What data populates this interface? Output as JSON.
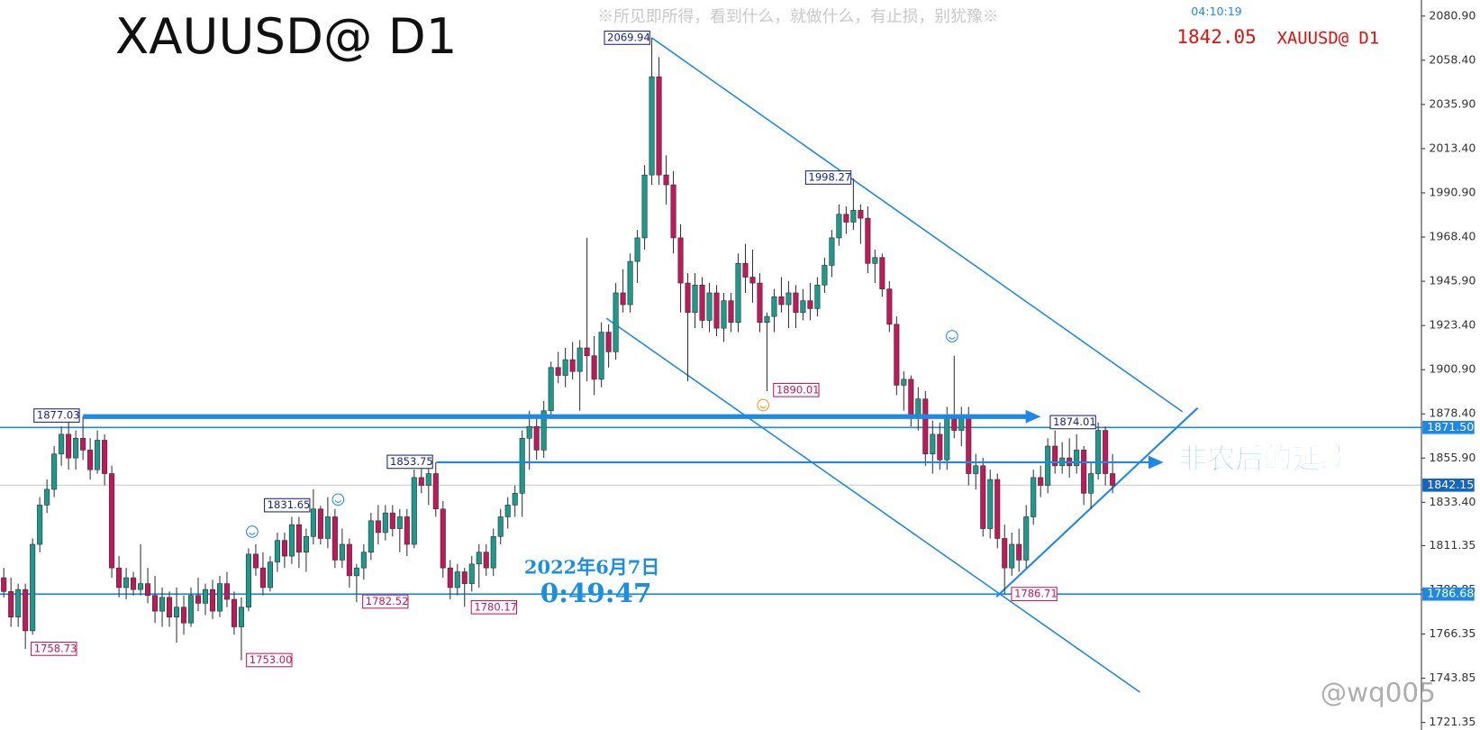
{
  "chart_data": {
    "type": "candlestick",
    "title": "XAUUSD@ D1",
    "subtitle": "※所见即所得，看到什么，就做什么，有止损，别犹豫※",
    "clock": "04:10:19",
    "current_price": 1842.05,
    "annotations": {
      "note": "非农后的延续",
      "date": "2022年6月7日",
      "time": "0:49:47"
    },
    "watermark": "@wq005",
    "colors": {
      "up": "#1a9b8c",
      "down": "#c2185b",
      "line": "#1e88e5"
    },
    "ylim": [
      1717.5,
      2089.07
    ],
    "yticks": [
      {
        "value": 2080.9,
        "label": "2080.90"
      },
      {
        "value": 2058.4,
        "label": "2058.40"
      },
      {
        "value": 2035.9,
        "label": "2035.90"
      },
      {
        "value": 2013.4,
        "label": "2013.40"
      },
      {
        "value": 1990.9,
        "label": "1990.90"
      },
      {
        "value": 1968.4,
        "label": "1968.40"
      },
      {
        "value": 1945.9,
        "label": "1945.90"
      },
      {
        "value": 1923.4,
        "label": "1923.40"
      },
      {
        "value": 1900.9,
        "label": "1900.90"
      },
      {
        "value": 1878.4,
        "label": "1878.40"
      },
      {
        "value": 1855.9,
        "label": "1855.90"
      },
      {
        "value": 1833.4,
        "label": "1833.40"
      },
      1811.35,
      1788.85,
      1766.35,
      1743.85,
      1721.35
    ],
    "levels": [
      {
        "value": 1871.5,
        "label": "1871.50"
      },
      1842.15,
      1786.68
    ],
    "price_labels": [
      2069.94,
      1998.27,
      1890.01,
      1877.03,
      1874.01,
      1853.75,
      1831.65,
      1782.52,
      1780.17,
      1786.71,
      1758.73,
      {
        "value": 1753,
        "label": "1753.00"
      }
    ],
    "ohlc": [
      [
        1795,
        1800,
        1785,
        1788
      ],
      [
        1788,
        1795,
        1770,
        1775
      ],
      [
        1775,
        1792,
        1770,
        1789
      ],
      [
        1789,
        1792,
        1758.73,
        1768
      ],
      [
        1768,
        1815,
        1766,
        1812
      ],
      [
        1812,
        1836,
        1808,
        1832
      ],
      [
        1832,
        1845,
        1828,
        1840
      ],
      [
        1840,
        1862,
        1836,
        1858
      ],
      [
        1858,
        1872,
        1852,
        1868
      ],
      [
        1868,
        1875,
        1850,
        1856
      ],
      [
        1856,
        1870,
        1850,
        1866
      ],
      [
        1866,
        1877.03,
        1855,
        1860
      ],
      [
        1860,
        1866,
        1845,
        1850
      ],
      [
        1850,
        1870,
        1848,
        1865
      ],
      [
        1865,
        1868,
        1842,
        1848
      ],
      [
        1848,
        1852,
        1795,
        1800
      ],
      [
        1800,
        1806,
        1785,
        1790
      ],
      [
        1790,
        1800,
        1784,
        1795
      ],
      [
        1795,
        1798,
        1786,
        1789
      ],
      [
        1789,
        1812,
        1786,
        1792
      ],
      [
        1792,
        1800,
        1782,
        1786
      ],
      [
        1786,
        1796,
        1772,
        1778
      ],
      [
        1778,
        1790,
        1770,
        1785
      ],
      [
        1785,
        1788,
        1770,
        1775
      ],
      [
        1775,
        1790,
        1762,
        1780
      ],
      [
        1780,
        1786,
        1766,
        1772
      ],
      [
        1772,
        1790,
        1770,
        1786
      ],
      [
        1786,
        1795,
        1778,
        1782
      ],
      [
        1782,
        1792,
        1776,
        1789
      ],
      [
        1789,
        1794,
        1774,
        1778
      ],
      [
        1778,
        1796,
        1775,
        1792
      ],
      [
        1792,
        1798,
        1780,
        1784
      ],
      [
        1784,
        1788,
        1766,
        1770
      ],
      [
        1770,
        1785,
        1753,
        1780
      ],
      [
        1780,
        1810,
        1778,
        1807
      ],
      [
        1807,
        1812,
        1796,
        1800
      ],
      [
        1800,
        1808,
        1786,
        1790
      ],
      [
        1790,
        1806,
        1788,
        1803
      ],
      [
        1803,
        1818,
        1798,
        1814
      ],
      [
        1814,
        1818,
        1800,
        1806
      ],
      [
        1806,
        1826,
        1802,
        1822
      ],
      [
        1822,
        1826,
        1800,
        1808
      ],
      [
        1808,
        1820,
        1798,
        1816
      ],
      [
        1816,
        1840,
        1812,
        1830
      ],
      [
        1830,
        1831.65,
        1812,
        1815
      ],
      [
        1815,
        1836,
        1810,
        1826
      ],
      [
        1826,
        1830,
        1800,
        1804
      ],
      [
        1804,
        1820,
        1800,
        1812
      ],
      [
        1812,
        1815,
        1790,
        1796
      ],
      [
        1796,
        1802,
        1782.52,
        1800
      ],
      [
        1800,
        1812,
        1794,
        1808
      ],
      [
        1808,
        1828,
        1804,
        1824
      ],
      [
        1824,
        1832,
        1812,
        1818
      ],
      [
        1818,
        1832,
        1814,
        1828
      ],
      [
        1828,
        1832,
        1816,
        1820
      ],
      [
        1820,
        1830,
        1808,
        1826
      ],
      [
        1826,
        1830,
        1806,
        1812
      ],
      [
        1812,
        1850,
        1810,
        1846
      ],
      [
        1846,
        1852,
        1838,
        1842
      ],
      [
        1842,
        1852,
        1832,
        1848
      ],
      [
        1848,
        1853.75,
        1826,
        1830
      ],
      [
        1830,
        1834,
        1795,
        1800
      ],
      [
        1800,
        1804,
        1784,
        1790
      ],
      [
        1790,
        1802,
        1786,
        1798
      ],
      [
        1798,
        1800,
        1780.17,
        1792
      ],
      [
        1792,
        1806,
        1788,
        1802
      ],
      [
        1802,
        1812,
        1790,
        1808
      ],
      [
        1808,
        1812,
        1796,
        1800
      ],
      [
        1800,
        1820,
        1796,
        1816
      ],
      [
        1816,
        1830,
        1812,
        1826
      ],
      [
        1826,
        1836,
        1820,
        1832
      ],
      [
        1832,
        1842,
        1826,
        1838
      ],
      [
        1838,
        1870,
        1826,
        1866
      ],
      [
        1866,
        1880,
        1850,
        1872
      ],
      [
        1872,
        1878,
        1855,
        1860
      ],
      [
        1860,
        1885,
        1856,
        1880
      ],
      [
        1880,
        1905,
        1876,
        1902
      ],
      [
        1902,
        1910,
        1894,
        1898
      ],
      [
        1898,
        1912,
        1892,
        1906
      ],
      [
        1906,
        1915,
        1896,
        1900
      ],
      [
        1900,
        1916,
        1880,
        1912
      ],
      [
        1912,
        1968,
        1895,
        1908
      ],
      [
        1908,
        1918,
        1888,
        1896
      ],
      [
        1896,
        1925,
        1892,
        1920
      ],
      [
        1920,
        1924,
        1902,
        1910
      ],
      [
        1910,
        1945,
        1906,
        1940
      ],
      [
        1940,
        1952,
        1930,
        1934
      ],
      [
        1934,
        1960,
        1930,
        1956
      ],
      [
        1956,
        1972,
        1945,
        1968
      ],
      [
        1968,
        2005,
        1962,
        2000
      ],
      [
        2000,
        2069.94,
        1995,
        2050
      ],
      [
        2050,
        2060,
        1995,
        2000
      ],
      [
        2000,
        2010,
        1985,
        1995
      ],
      [
        1995,
        2002,
        1960,
        1968
      ],
      [
        1968,
        1975,
        1930,
        1945
      ],
      [
        1945,
        1950,
        1895,
        1930
      ],
      [
        1930,
        1950,
        1922,
        1944
      ],
      [
        1944,
        1948,
        1922,
        1926
      ],
      [
        1926,
        1945,
        1920,
        1940
      ],
      [
        1940,
        1944,
        1918,
        1922
      ],
      [
        1922,
        1940,
        1915,
        1936
      ],
      [
        1936,
        1940,
        1920,
        1925
      ],
      [
        1925,
        1960,
        1920,
        1955
      ],
      [
        1955,
        1965,
        1940,
        1948
      ],
      [
        1948,
        1962,
        1935,
        1945
      ],
      [
        1945,
        1950,
        1920,
        1925
      ],
      [
        1925,
        1930,
        1890.01,
        1928
      ],
      [
        1928,
        1942,
        1920,
        1938
      ],
      [
        1938,
        1948,
        1930,
        1934
      ],
      [
        1934,
        1946,
        1922,
        1940
      ],
      [
        1940,
        1944,
        1922,
        1930
      ],
      [
        1930,
        1942,
        1926,
        1936
      ],
      [
        1936,
        1945,
        1926,
        1932
      ],
      [
        1932,
        1948,
        1928,
        1944
      ],
      [
        1944,
        1958,
        1940,
        1954
      ],
      [
        1954,
        1972,
        1948,
        1968
      ],
      [
        1968,
        1985,
        1964,
        1980
      ],
      [
        1980,
        1984,
        1970,
        1976
      ],
      [
        1976,
        1998.27,
        1972,
        1982
      ],
      [
        1982,
        1985,
        1965,
        1978
      ],
      [
        1978,
        1984,
        1950,
        1955
      ],
      [
        1955,
        1962,
        1945,
        1958
      ],
      [
        1958,
        1960,
        1938,
        1942
      ],
      [
        1942,
        1946,
        1920,
        1924
      ],
      [
        1924,
        1928,
        1888,
        1893
      ],
      [
        1893,
        1900,
        1880,
        1896
      ],
      [
        1896,
        1898,
        1872,
        1878
      ],
      [
        1878,
        1892,
        1870,
        1886
      ],
      [
        1886,
        1890,
        1852,
        1858
      ],
      [
        1858,
        1875,
        1848,
        1868
      ],
      [
        1868,
        1874,
        1850,
        1855
      ],
      [
        1855,
        1882,
        1850,
        1876
      ],
      [
        1876,
        1908,
        1866,
        1870
      ],
      [
        1870,
        1882,
        1862,
        1878
      ],
      [
        1878,
        1882,
        1842,
        1848
      ],
      [
        1848,
        1858,
        1840,
        1852
      ],
      [
        1852,
        1856,
        1816,
        1820
      ],
      [
        1820,
        1850,
        1815,
        1845
      ],
      [
        1845,
        1848,
        1810,
        1815
      ],
      [
        1815,
        1822,
        1786.71,
        1800
      ],
      [
        1800,
        1818,
        1796,
        1812
      ],
      [
        1812,
        1820,
        1798,
        1804
      ],
      [
        1804,
        1832,
        1800,
        1826
      ],
      [
        1826,
        1850,
        1822,
        1846
      ],
      [
        1846,
        1852,
        1836,
        1842
      ],
      [
        1842,
        1866,
        1838,
        1862
      ],
      [
        1862,
        1870,
        1848,
        1852
      ],
      [
        1852,
        1864,
        1848,
        1856
      ],
      [
        1856,
        1866,
        1846,
        1852
      ],
      [
        1852,
        1868,
        1848,
        1860
      ],
      [
        1860,
        1862,
        1832,
        1838
      ],
      [
        1838,
        1854,
        1830,
        1848
      ],
      [
        1848,
        1874.01,
        1845,
        1870
      ],
      [
        1870,
        1872,
        1842,
        1848
      ],
      [
        1848,
        1858,
        1838,
        1842.05
      ]
    ]
  }
}
